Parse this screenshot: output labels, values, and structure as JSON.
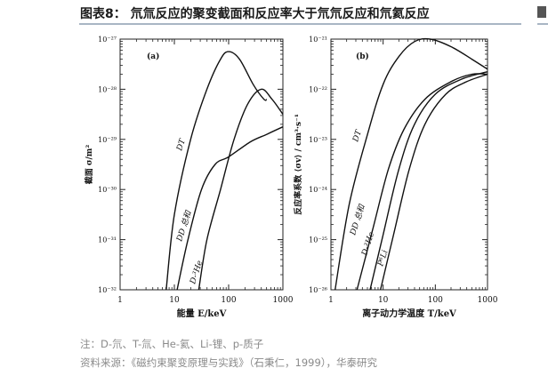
{
  "header": {
    "title": "图表8：  氘氚反应的聚变截面和反应率大于氘氘反应和氘氦反应"
  },
  "notes": {
    "note": "注：D-氘、T-氚、He-氦、Li-锂、p-质子",
    "source": "资料来源：《磁约束聚变原理与实践》（石秉仁，1999），华泰研究"
  },
  "chart_data": [
    {
      "type": "line",
      "panel_label": "(a)",
      "xlabel": "能量 E/keV",
      "ylabel": "截面 σ/m²",
      "xscale": "log",
      "yscale": "log",
      "xlim": [
        1,
        1000
      ],
      "ylim_exponents": [
        -32,
        -27
      ],
      "x_ticks": [
        "1",
        "10",
        "100",
        "1000"
      ],
      "y_ticks": [
        "10⁻²⁷",
        "10⁻²⁸",
        "10⁻²⁹",
        "10⁻³⁰",
        "10⁻³¹",
        "10⁻³²"
      ],
      "series": [
        {
          "name": "DT",
          "log10_y_vs_log10_x": [
            [
              0.85,
              -32.0
            ],
            [
              1.0,
              -30.5
            ],
            [
              1.3,
              -29.0
            ],
            [
              1.6,
              -28.0
            ],
            [
              1.85,
              -27.4
            ],
            [
              2.0,
              -27.25
            ],
            [
              2.2,
              -27.4
            ],
            [
              2.45,
              -27.9
            ],
            [
              2.65,
              -28.2
            ],
            [
              2.7,
              -28.2
            ]
          ]
        },
        {
          "name": "DD 总和",
          "log10_y_vs_log10_x": [
            [
              1.05,
              -32.0
            ],
            [
              1.25,
              -31.0
            ],
            [
              1.5,
              -30.0
            ],
            [
              1.75,
              -29.5
            ],
            [
              2.0,
              -29.35
            ],
            [
              2.4,
              -29.05
            ],
            [
              2.7,
              -28.9
            ],
            [
              3.0,
              -28.75
            ]
          ]
        },
        {
          "name": "D-³He",
          "log10_y_vs_log10_x": [
            [
              1.45,
              -32.0
            ],
            [
              1.6,
              -31.0
            ],
            [
              1.85,
              -30.0
            ],
            [
              2.1,
              -29.0
            ],
            [
              2.35,
              -28.3
            ],
            [
              2.6,
              -28.0
            ],
            [
              2.8,
              -28.2
            ],
            [
              3.0,
              -28.5
            ]
          ]
        }
      ]
    },
    {
      "type": "line",
      "panel_label": "(b)",
      "xlabel": "离子动力学温度 T/keV",
      "ylabel": "反应率系数 ⟨σv⟩ / cm³·s⁻¹",
      "xscale": "log",
      "yscale": "log",
      "xlim": [
        1,
        1000
      ],
      "ylim_exponents": [
        -26,
        -21
      ],
      "x_ticks": [
        "1",
        "10",
        "100",
        "1000"
      ],
      "y_ticks": [
        "10⁻²¹",
        "10⁻²²",
        "10⁻²³",
        "10⁻²⁴",
        "10⁻²⁵",
        "10⁻²⁶"
      ],
      "series": [
        {
          "name": "DT",
          "log10_y_vs_log10_x": [
            [
              0.08,
              -26.0
            ],
            [
              0.35,
              -24.3
            ],
            [
              0.7,
              -22.9
            ],
            [
              1.0,
              -21.9
            ],
            [
              1.3,
              -21.35
            ],
            [
              1.6,
              -21.05
            ],
            [
              1.9,
              -21.0
            ],
            [
              2.3,
              -21.15
            ],
            [
              2.7,
              -21.4
            ],
            [
              3.0,
              -21.6
            ]
          ]
        },
        {
          "name": "DD 总和",
          "log10_y_vs_log10_x": [
            [
              0.5,
              -26.0
            ],
            [
              0.8,
              -24.8
            ],
            [
              1.1,
              -23.6
            ],
            [
              1.4,
              -22.8
            ],
            [
              1.8,
              -22.2
            ],
            [
              2.3,
              -21.85
            ],
            [
              2.7,
              -21.7
            ],
            [
              3.0,
              -21.7
            ]
          ]
        },
        {
          "name": "D-³He",
          "log10_y_vs_log10_x": [
            [
              0.75,
              -26.0
            ],
            [
              1.0,
              -24.9
            ],
            [
              1.3,
              -23.6
            ],
            [
              1.6,
              -22.7
            ],
            [
              2.0,
              -22.1
            ],
            [
              2.5,
              -21.8
            ],
            [
              3.0,
              -21.65
            ]
          ]
        },
        {
          "name": "P⁶Li",
          "log10_y_vs_log10_x": [
            [
              0.95,
              -26.0
            ],
            [
              1.2,
              -24.9
            ],
            [
              1.5,
              -23.6
            ],
            [
              1.8,
              -22.7
            ],
            [
              2.2,
              -22.1
            ],
            [
              2.6,
              -21.85
            ],
            [
              3.0,
              -21.7
            ]
          ]
        }
      ]
    }
  ]
}
